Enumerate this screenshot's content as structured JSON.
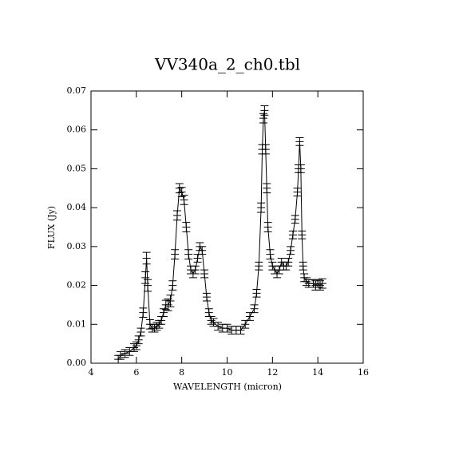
{
  "chart_data": {
    "type": "line",
    "title": "VV340a_2_ch0.tbl",
    "x_label": "WAVELENGTH (micron)",
    "y_label": "FLUX (Jy)",
    "color": "#000000",
    "xlim": [
      4,
      16
    ],
    "xticks": [
      4,
      6,
      8,
      10,
      12,
      14,
      16
    ],
    "ylim": [
      0,
      0.07
    ],
    "yticks": [
      {
        "value": 0,
        "label": "0.00"
      },
      0.01,
      0.02,
      0.03,
      0.04,
      0.05,
      0.06,
      0.07
    ],
    "x": [
      5.2,
      5.3,
      5.5,
      5.7,
      5.9,
      6.0,
      6.1,
      6.2,
      6.3,
      6.4,
      6.45,
      6.5,
      6.6,
      6.7,
      6.8,
      6.9,
      7.0,
      7.1,
      7.2,
      7.3,
      7.4,
      7.5,
      7.6,
      7.7,
      7.8,
      7.9,
      8.0,
      8.1,
      8.2,
      8.3,
      8.4,
      8.5,
      8.6,
      8.7,
      8.8,
      8.9,
      9.0,
      9.1,
      9.2,
      9.3,
      9.4,
      9.6,
      9.8,
      10.0,
      10.2,
      10.4,
      10.6,
      10.8,
      11.0,
      11.2,
      11.3,
      11.4,
      11.5,
      11.55,
      11.6,
      11.65,
      11.7,
      11.75,
      11.8,
      11.9,
      12.0,
      12.1,
      12.2,
      12.3,
      12.4,
      12.5,
      12.6,
      12.7,
      12.8,
      12.9,
      13.0,
      13.1,
      13.15,
      13.2,
      13.25,
      13.3,
      13.35,
      13.4,
      13.5,
      13.6,
      13.8,
      13.9,
      14.0,
      14.1,
      14.2
    ],
    "values": [
      0.001,
      0.002,
      0.0025,
      0.003,
      0.004,
      0.0045,
      0.006,
      0.008,
      0.013,
      0.022,
      0.027,
      0.02,
      0.01,
      0.009,
      0.009,
      0.0095,
      0.01,
      0.011,
      0.013,
      0.015,
      0.015,
      0.016,
      0.02,
      0.028,
      0.038,
      0.045,
      0.044,
      0.042,
      0.035,
      0.028,
      0.024,
      0.023,
      0.024,
      0.027,
      0.03,
      0.029,
      0.023,
      0.017,
      0.013,
      0.011,
      0.0105,
      0.0095,
      0.009,
      0.009,
      0.0085,
      0.0085,
      0.0085,
      0.01,
      0.012,
      0.014,
      0.018,
      0.025,
      0.04,
      0.055,
      0.063,
      0.065,
      0.055,
      0.045,
      0.035,
      0.028,
      0.025,
      0.024,
      0.023,
      0.024,
      0.026,
      0.025,
      0.025,
      0.026,
      0.029,
      0.033,
      0.037,
      0.044,
      0.05,
      0.057,
      0.05,
      0.033,
      0.025,
      0.022,
      0.021,
      0.0205,
      0.0205,
      0.02,
      0.0205,
      0.02,
      0.0205
    ],
    "errors": [
      0.001,
      0.001,
      0.001,
      0.001,
      0.001,
      0.001,
      0.001,
      0.001,
      0.0012,
      0.0015,
      0.0015,
      0.0015,
      0.0012,
      0.001,
      0.001,
      0.001,
      0.001,
      0.001,
      0.001,
      0.0012,
      0.0015,
      0.0015,
      0.0012,
      0.0012,
      0.0012,
      0.0012,
      0.0012,
      0.0012,
      0.0012,
      0.0012,
      0.001,
      0.001,
      0.001,
      0.001,
      0.001,
      0.001,
      0.001,
      0.001,
      0.001,
      0.001,
      0.001,
      0.001,
      0.001,
      0.001,
      0.001,
      0.001,
      0.001,
      0.001,
      0.001,
      0.001,
      0.001,
      0.001,
      0.0012,
      0.0012,
      0.0012,
      0.0012,
      0.0012,
      0.0012,
      0.0012,
      0.0012,
      0.001,
      0.001,
      0.001,
      0.001,
      0.001,
      0.001,
      0.001,
      0.001,
      0.001,
      0.001,
      0.001,
      0.001,
      0.001,
      0.001,
      0.001,
      0.001,
      0.001,
      0.001,
      0.001,
      0.001,
      0.001,
      0.0012,
      0.001,
      0.0012,
      0.0012
    ]
  }
}
